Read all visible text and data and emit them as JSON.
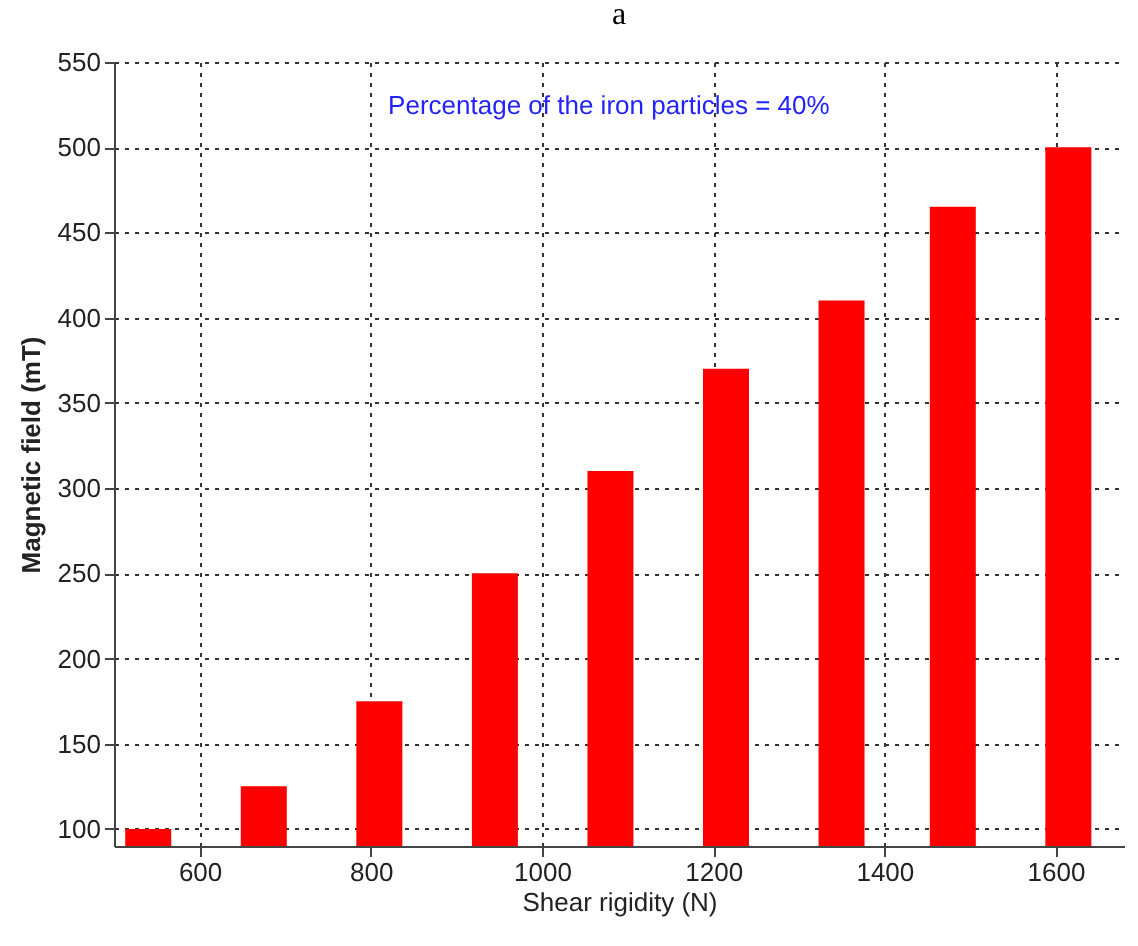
{
  "chart_data": {
    "type": "bar",
    "title": "a",
    "xlabel": "Shear rigidity (N)",
    "ylabel": "Magnetic field (mT)",
    "annotations": [
      "Percentage of the iron particles = 40%"
    ],
    "x": [
      540,
      675,
      810,
      945,
      1080,
      1215,
      1350,
      1480,
      1615
    ],
    "series": [
      {
        "color": "#ff0000",
        "values": [
          100,
          125,
          175,
          250,
          310,
          370,
          410,
          465,
          500
        ]
      }
    ],
    "xlim": [
      500,
      1680
    ],
    "xticks": [
      600,
      800,
      1000,
      1200,
      1400,
      1600
    ],
    "ylim": [
      90,
      550
    ],
    "yticks": [
      100,
      150,
      200,
      250,
      300,
      350,
      400,
      450,
      500,
      550
    ],
    "grid": true
  }
}
